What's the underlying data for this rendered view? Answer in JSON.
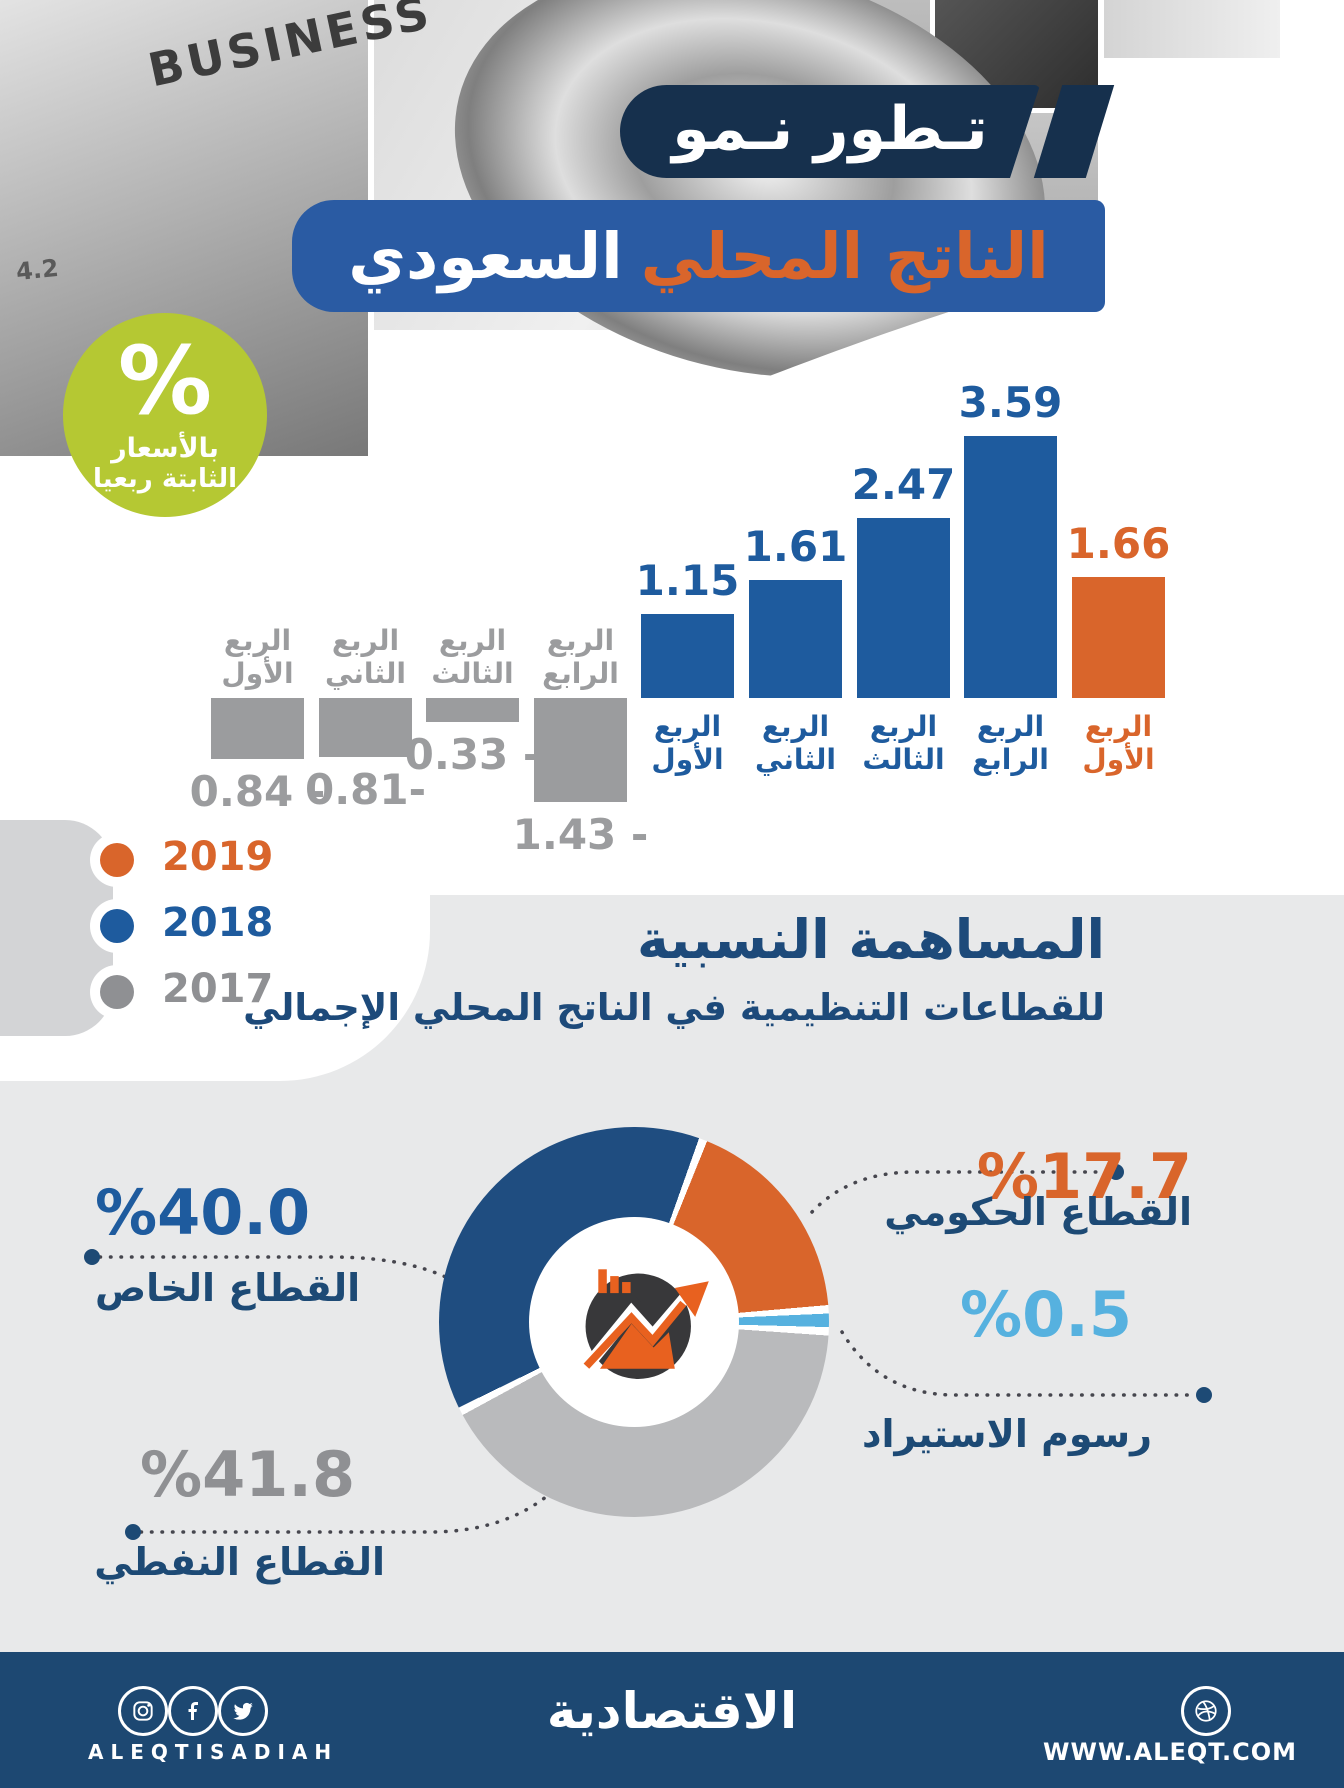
{
  "header": {
    "photo_texts": {
      "business": "BUSINESS",
      "ticker": "4.2"
    },
    "badge": {
      "symbol": "%",
      "line1": "بالأسعار",
      "line2": "الثابتة ربعيا"
    },
    "banner1": "تـطور نـمو",
    "banner2_orange": "الناتج المحلي",
    "banner2_white": "السعودي"
  },
  "colors": {
    "navy_dark": "#16304d",
    "banner_blue": "#2a5ba3",
    "bar_blue": "#1e5b9e",
    "orange": "#d9652b",
    "gray": "#9b9c9e",
    "light_blue": "#56b1df",
    "green": "#b5c833",
    "section_bg": "#e8e9ea",
    "footer_navy": "#1d4872",
    "donut_blue": "#1f4d80",
    "donut_gray": "#b9babc",
    "text_navy": "#1d4a75"
  },
  "chart_data": [
    {
      "type": "bar",
      "title": "تطور نمو الناتج المحلي السعودي",
      "note": "بالأسعار الثابتة ربعيا",
      "unit": "%",
      "ylim": [
        -1.43,
        3.59
      ],
      "grid": false,
      "legend_position": "bottom-left",
      "series": [
        {
          "name": "2017",
          "color": "#9b9c9e",
          "categories": [
            "الربع الأول",
            "الربع الثاني",
            "الربع الثالث",
            "الربع الرابع"
          ],
          "values": [
            -0.84,
            -0.81,
            -0.33,
            -1.43
          ],
          "value_labels": [
            "0.84 -",
            "0.81-",
            "0.33 -",
            "1.43 -"
          ]
        },
        {
          "name": "2018",
          "color": "#1e5b9e",
          "categories": [
            "الربع الأول",
            "الربع الثاني",
            "الربع الثالث",
            "الربع الرابع"
          ],
          "values": [
            1.15,
            1.61,
            2.47,
            3.59
          ],
          "value_labels": [
            "1.15",
            "1.61",
            "2.47",
            "3.59"
          ]
        },
        {
          "name": "2019",
          "color": "#d9652b",
          "categories": [
            "الربع الأول"
          ],
          "values": [
            1.66
          ],
          "value_labels": [
            "1.66"
          ]
        }
      ]
    },
    {
      "type": "pie",
      "title": "المساهمة النسبية للقطاعات التنظيمية في الناتج المحلي الإجمالي",
      "rotation_deg_clockwise_from_top": 22,
      "slices": [
        {
          "label": "القطاع الحكومي",
          "value": 17.7,
          "color": "#d9652b"
        },
        {
          "label": "رسوم الاستيراد",
          "value": 0.5,
          "color": "#56b1df"
        },
        {
          "label": "القطاع النفطي",
          "value": 41.8,
          "color": "#b9babc"
        },
        {
          "label": "القطاع الخاص",
          "value": 40.0,
          "color": "#1f4d80"
        }
      ]
    }
  ],
  "legend": {
    "items": [
      {
        "label": "2019",
        "color": "#d9652b"
      },
      {
        "label": "2018",
        "color": "#1e5b9e"
      },
      {
        "label": "2017",
        "color": "#8f9093"
      }
    ]
  },
  "section2": {
    "title": "المساهمة النسبية",
    "subtitle": "للقطاعات التنظيمية في الناتج المحلي الإجمالي"
  },
  "donut_callouts": {
    "gov": {
      "pct": "%17.7",
      "label": "القطاع الحكومي"
    },
    "private": {
      "pct": "%40.0",
      "label": "القطاع الخاص"
    },
    "import": {
      "pct": "%0.5",
      "label": "رسوم الاستيراد"
    },
    "oil": {
      "pct": "%41.8",
      "label": "القطاع النفطي"
    }
  },
  "footer": {
    "brand_latin": "ALEQTISADIAH",
    "brand_arabic": "الاقتصادية",
    "website": "WWW.ALEQT.COM",
    "icons": [
      "instagram",
      "facebook",
      "twitter",
      "dribbble"
    ]
  }
}
